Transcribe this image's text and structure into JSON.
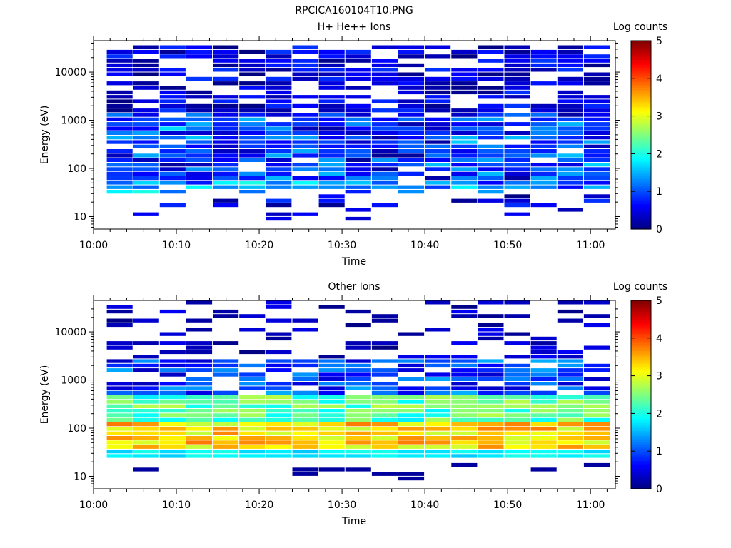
{
  "title": "RPCICA160104T10.PNG",
  "chart_data": [
    {
      "type": "heatmap",
      "title": "H+ He++ Ions",
      "xlabel": "Time",
      "ylabel": "Energy (eV)",
      "x_ticks": [
        "10:00",
        "10:10",
        "10:20",
        "10:30",
        "10:40",
        "10:50",
        "11:00"
      ],
      "y_ticks": [
        "10",
        "100",
        "1000",
        "10000"
      ],
      "y_scale": "log",
      "ylim": [
        5.5,
        45000
      ],
      "xlim_minutes": [
        0,
        63
      ],
      "colorbar": {
        "label": "Log counts",
        "ticks": [
          "0",
          "1",
          "2",
          "3",
          "4",
          "5"
        ],
        "range": [
          0,
          5
        ]
      },
      "dominant_log_counts": "0 to 1.5",
      "grid": false
    },
    {
      "type": "heatmap",
      "title": "Other Ions",
      "xlabel": "Time",
      "ylabel": "Energy (eV)",
      "x_ticks": [
        "10:00",
        "10:10",
        "10:20",
        "10:30",
        "10:40",
        "10:50",
        "11:00"
      ],
      "y_ticks": [
        "10",
        "100",
        "1000",
        "10000"
      ],
      "y_scale": "log",
      "ylim": [
        5.5,
        45000
      ],
      "xlim_minutes": [
        0,
        63
      ],
      "colorbar": {
        "label": "Log counts",
        "ticks": [
          "0",
          "1",
          "2",
          "3",
          "4",
          "5"
        ],
        "range": [
          0,
          5
        ]
      },
      "dominant_log_counts": "2.5 to 4 near 30-100 eV, below 1 above 1000 eV",
      "grid": false
    }
  ]
}
